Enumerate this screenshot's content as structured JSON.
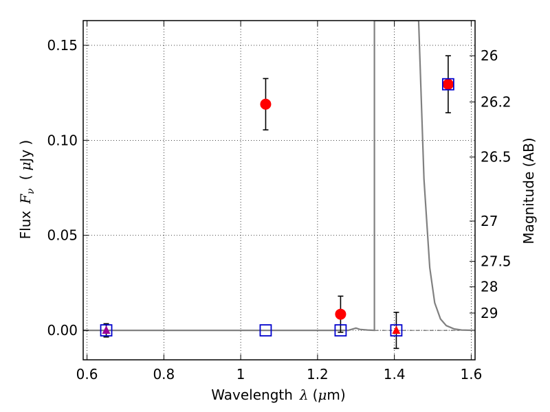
{
  "chart_data": {
    "type": "scatter",
    "title": "",
    "xlabel": "Wavelength",
    "xlabel_symbol": "λ",
    "xlabel_unit_open": "(",
    "xlabel_unit_mu": "μ",
    "xlabel_unit_rest": "m)",
    "ylabel": "Flux",
    "ylabel_symbol": "F",
    "ylabel_subscript": "ν",
    "ylabel_unit_open": "(",
    "ylabel_unit_mu": "μ",
    "ylabel_unit_rest": "Jy )",
    "y2label": "Magnitude (AB)",
    "xlim": [
      0.59,
      1.61
    ],
    "ylim": [
      -0.0155,
      0.163
    ],
    "x_ticks": [
      0.6,
      0.8,
      1.0,
      1.2,
      1.4,
      1.6
    ],
    "x_tick_labels": [
      "0.6",
      "0.8",
      "1",
      "1.2",
      "1.4",
      "1.6"
    ],
    "y_ticks": [
      0.0,
      0.05,
      0.1,
      0.15
    ],
    "y_tick_labels": [
      "0.00",
      "0.05",
      "0.10",
      "0.15"
    ],
    "y2_ticks": [
      {
        "label": "26",
        "flux": 0.1445
      },
      {
        "label": "26.2",
        "flux": 0.1202
      },
      {
        "label": "26.5",
        "flux": 0.0912
      },
      {
        "label": "27",
        "flux": 0.0575
      },
      {
        "label": "27.5",
        "flux": 0.0363
      },
      {
        "label": "28",
        "flux": 0.0229
      },
      {
        "label": "29",
        "flux": 0.0091
      }
    ],
    "grid": true,
    "series": [
      {
        "marker": "circle",
        "color": "#ff0000",
        "points": [
          {
            "x": 1.065,
            "y": 0.119,
            "yerr": 0.0135
          },
          {
            "x": 1.26,
            "y": 0.0085,
            "yerr": 0.0095
          },
          {
            "x": 1.54,
            "y": 0.1295,
            "yerr": 0.015
          }
        ]
      },
      {
        "marker": "open-square",
        "color": "#0000cc",
        "points": [
          {
            "x": 0.65,
            "y": 0.0
          },
          {
            "x": 1.065,
            "y": 0.0
          },
          {
            "x": 1.26,
            "y": 0.0
          },
          {
            "x": 1.405,
            "y": 0.0
          },
          {
            "x": 1.54,
            "y": 0.1295
          }
        ]
      },
      {
        "marker": "triangle",
        "color": "#cc0000",
        "points": [
          {
            "x": 0.65,
            "y": 0.0,
            "yerr": 0.0035,
            "color": "#990099"
          },
          {
            "x": 1.405,
            "y": 0.0,
            "yerr": 0.0095,
            "color": "#ff0000"
          }
        ]
      },
      {
        "marker": "line",
        "color": "#808080",
        "points": [
          [
            0.59,
            0.0
          ],
          [
            1.28,
            0.0
          ],
          [
            1.3,
            0.0012
          ],
          [
            1.31,
            0.0005
          ],
          [
            1.33,
            0.0002
          ],
          [
            1.348,
            0.0
          ],
          [
            1.348,
            0.163
          ],
          [
            1.463,
            0.163
          ],
          [
            1.477,
            0.0795
          ],
          [
            1.492,
            0.033
          ],
          [
            1.505,
            0.0145
          ],
          [
            1.52,
            0.006
          ],
          [
            1.535,
            0.0025
          ],
          [
            1.555,
            0.0008
          ],
          [
            1.575,
            0.0002
          ],
          [
            1.61,
            0.0
          ]
        ]
      }
    ]
  }
}
